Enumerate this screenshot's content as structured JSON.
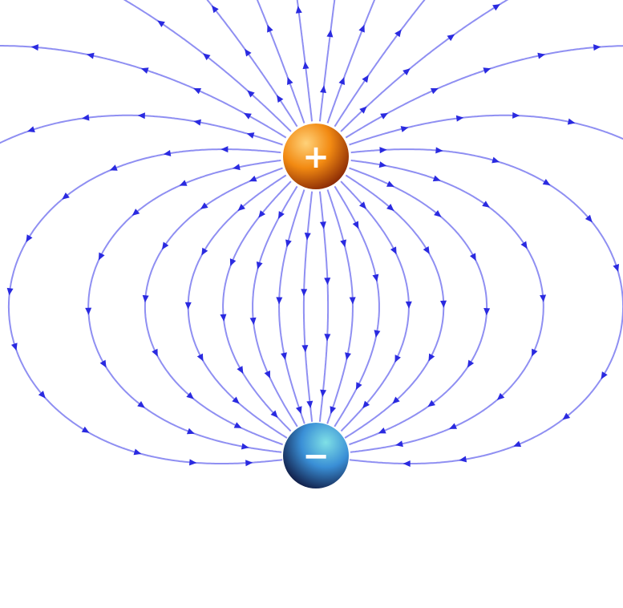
{
  "diagram": {
    "type": "electric-dipole-field-lines",
    "colors": {
      "field_line": "#7b7bf0",
      "arrow": "#2a2ae0",
      "background": "#ffffff"
    },
    "charges": [
      {
        "id": "positive",
        "sign": "+",
        "colors": [
          "#ffd27a",
          "#f28a12",
          "#8a2a05"
        ]
      },
      {
        "id": "negative",
        "sign": "−",
        "colors": [
          "#7fe0e6",
          "#3a8fd6",
          "#12204a"
        ]
      }
    ]
  }
}
